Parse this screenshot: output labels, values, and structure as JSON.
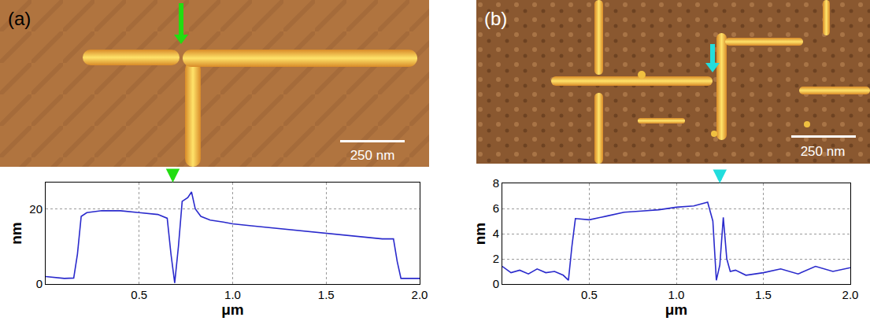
{
  "images": [
    {
      "label": "(a)",
      "scale_bar": "250 nm"
    },
    {
      "label": "(b)",
      "scale_bar": "250 nm"
    }
  ],
  "chart_data": [
    {
      "type": "line",
      "x_label": "μm",
      "y_label": "nm",
      "color": "#2a2acc",
      "grid": true,
      "x": [
        0,
        0.05,
        0.1,
        0.15,
        0.17,
        0.19,
        0.22,
        0.3,
        0.4,
        0.5,
        0.6,
        0.65,
        0.67,
        0.69,
        0.71,
        0.73,
        0.76,
        0.78,
        0.8,
        0.83,
        0.88,
        0.95,
        1.0,
        1.1,
        1.2,
        1.3,
        1.4,
        1.5,
        1.6,
        1.7,
        1.8,
        1.86,
        1.88,
        1.9,
        1.95,
        2.0
      ],
      "values": [
        2,
        1.8,
        1.5,
        1.6,
        8,
        18,
        19,
        19.5,
        19.5,
        19,
        18.5,
        17.5,
        8,
        0.3,
        10,
        22,
        23,
        24.5,
        20,
        18,
        17,
        16.5,
        16,
        15.5,
        15,
        14.5,
        14,
        13.5,
        13,
        12.5,
        12,
        12,
        6,
        1.5,
        1.5,
        1.5
      ],
      "xlim": [
        0,
        2.0
      ],
      "xticks": [
        0.5,
        {
          "value": 1,
          "label": "1.0"
        },
        1.5,
        {
          "value": 2,
          "label": "2.0"
        }
      ],
      "ylim": [
        0,
        27
      ],
      "yticks": [
        0,
        20
      ],
      "annotations": [
        {
          "x": 0.68,
          "color": "#22dd11"
        }
      ]
    },
    {
      "type": "line",
      "x_label": "μm",
      "y_label": "nm",
      "color": "#2a2acc",
      "grid": true,
      "x": [
        0,
        0.05,
        0.1,
        0.15,
        0.2,
        0.25,
        0.3,
        0.35,
        0.38,
        0.4,
        0.42,
        0.5,
        0.6,
        0.7,
        0.8,
        0.9,
        1.0,
        1.1,
        1.18,
        1.21,
        1.23,
        1.25,
        1.27,
        1.29,
        1.31,
        1.34,
        1.4,
        1.5,
        1.6,
        1.7,
        1.8,
        1.9,
        2.0
      ],
      "values": [
        1.4,
        0.9,
        1.1,
        0.8,
        1.2,
        0.9,
        1.0,
        0.7,
        0.3,
        3,
        5.2,
        5.1,
        5.4,
        5.7,
        5.8,
        5.9,
        6.1,
        6.2,
        6.5,
        5,
        0.3,
        1.5,
        5.3,
        2,
        1.0,
        1.1,
        0.7,
        0.9,
        1.2,
        0.8,
        1.4,
        1.0,
        1.3
      ],
      "xlim": [
        0,
        2.0
      ],
      "xticks": [
        0.5,
        {
          "value": 1,
          "label": "1.0"
        },
        1.5,
        {
          "value": 2,
          "label": "2.0"
        }
      ],
      "ylim": [
        0,
        8
      ],
      "yticks": [
        0,
        2,
        4,
        6,
        8
      ],
      "annotations": [
        {
          "x": 1.25,
          "color": "#22dddd"
        }
      ]
    }
  ]
}
